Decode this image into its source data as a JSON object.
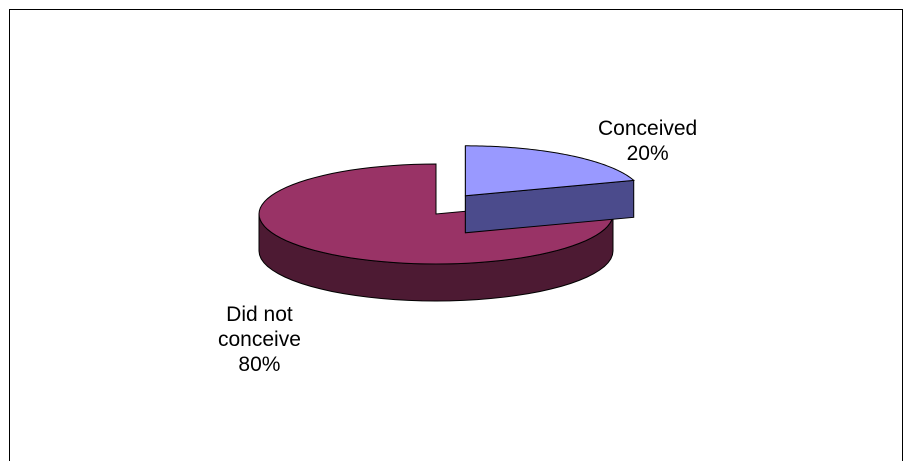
{
  "chart_data": {
    "type": "pie",
    "style": "3d-exploded",
    "series": [
      {
        "values": [
          20,
          80
        ]
      }
    ],
    "slices": [
      {
        "label": "Conceived",
        "value": 20,
        "percent_label": "20%",
        "color_top": "#9999ff",
        "color_side": "#4b4b8c"
      },
      {
        "label_lines": [
          "Did not",
          "conceive"
        ],
        "value": 80,
        "percent_label": "80%",
        "color_top": "#993366",
        "color_side": "#4d1a33"
      }
    ],
    "title": "",
    "legend": "none"
  }
}
